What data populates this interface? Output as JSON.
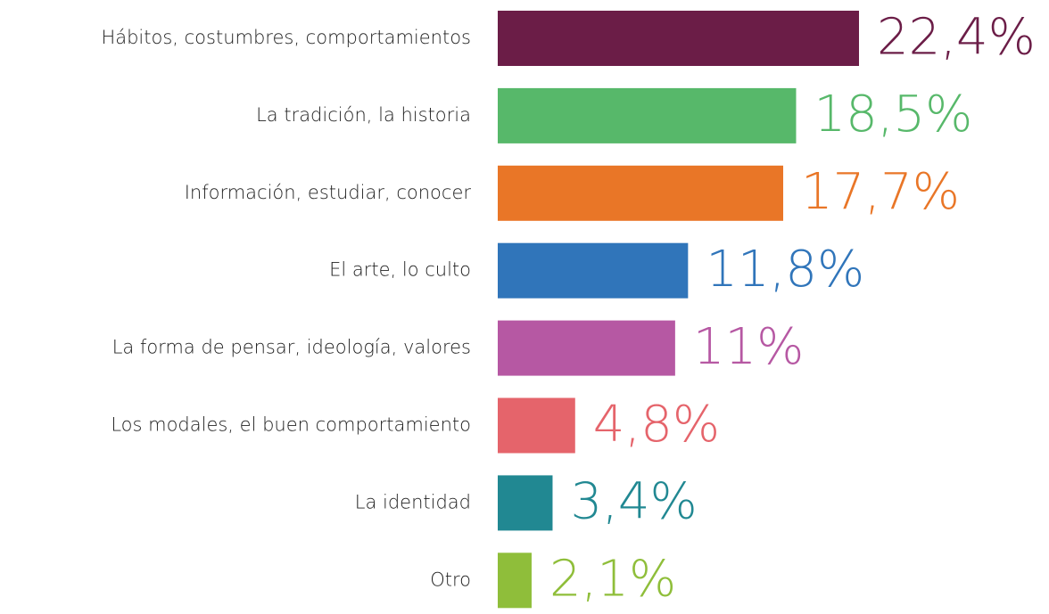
{
  "chart_data": {
    "type": "bar",
    "orientation": "horizontal",
    "categories": [
      "Hábitos, costumbres, comportamientos",
      "La tradición, la historia",
      "Información, estudiar, conocer",
      "El arte, lo culto",
      "La forma de pensar, ideología, valores",
      "Los modales, el buen comportamiento",
      "La identidad",
      "Otro"
    ],
    "values": [
      22.4,
      18.5,
      17.7,
      11.8,
      11,
      4.8,
      3.4,
      2.1
    ],
    "value_labels": [
      "22,4%",
      "18,5%",
      "17,7%",
      "11,8%",
      "11%",
      "4,8%",
      "3,4%",
      "2,1%"
    ],
    "colors": [
      "#6b1d47",
      "#57b86a",
      "#e97627",
      "#3075ba",
      "#b658a3",
      "#e5646b",
      "#218892",
      "#8fbe3a"
    ]
  }
}
